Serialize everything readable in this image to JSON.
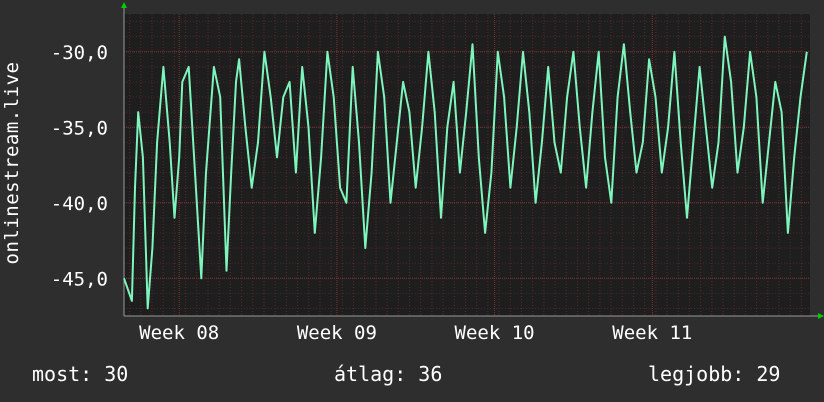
{
  "chart_data": {
    "type": "line",
    "ylabel": "onlinestream.live",
    "ylim": [
      -47.5,
      -27.5
    ],
    "y_ticks": [
      -30,
      -35,
      -40,
      -45
    ],
    "y_tick_labels": [
      "-30,0",
      "-35,0",
      "-40,0",
      "-45,0"
    ],
    "x_tick_labels": [
      "Week 08",
      "Week 09",
      "Week 10",
      "Week 11"
    ],
    "x_tick_positions": [
      1,
      2,
      3,
      4
    ],
    "xlim": [
      0.65,
      5.0
    ],
    "grid": true,
    "series": [
      {
        "color": "#7ef5bc",
        "x": [
          0.65,
          0.7,
          0.72,
          0.74,
          0.77,
          0.8,
          0.83,
          0.86,
          0.9,
          0.94,
          0.97,
          1.0,
          1.02,
          1.06,
          1.1,
          1.14,
          1.17,
          1.22,
          1.26,
          1.3,
          1.33,
          1.36,
          1.38,
          1.42,
          1.46,
          1.5,
          1.54,
          1.58,
          1.62,
          1.66,
          1.7,
          1.74,
          1.78,
          1.82,
          1.86,
          1.9,
          1.94,
          1.98,
          2.02,
          2.06,
          2.1,
          2.14,
          2.18,
          2.22,
          2.26,
          2.3,
          2.34,
          2.38,
          2.42,
          2.46,
          2.5,
          2.54,
          2.58,
          2.62,
          2.66,
          2.7,
          2.74,
          2.78,
          2.82,
          2.86,
          2.9,
          2.94,
          2.98,
          3.02,
          3.06,
          3.1,
          3.14,
          3.18,
          3.22,
          3.26,
          3.3,
          3.34,
          3.38,
          3.42,
          3.46,
          3.5,
          3.54,
          3.58,
          3.62,
          3.66,
          3.7,
          3.74,
          3.78,
          3.82,
          3.86,
          3.9,
          3.94,
          3.98,
          4.02,
          4.06,
          4.1,
          4.14,
          4.18,
          4.22,
          4.26,
          4.3,
          4.34,
          4.38,
          4.42,
          4.46,
          4.5,
          4.54,
          4.58,
          4.62,
          4.66,
          4.7,
          4.74,
          4.78,
          4.82,
          4.86,
          4.9,
          4.94,
          4.98
        ],
        "y": [
          -45,
          -46.5,
          -39,
          -34,
          -37,
          -47,
          -43,
          -36,
          -31,
          -36,
          -41,
          -37,
          -32,
          -31,
          -38,
          -45,
          -38,
          -31,
          -33,
          -44.5,
          -38,
          -32,
          -30.5,
          -35,
          -39,
          -36,
          -30,
          -33,
          -37,
          -33,
          -32,
          -38,
          -31,
          -35,
          -42,
          -37,
          -30,
          -33,
          -39,
          -40,
          -31,
          -36,
          -43,
          -38,
          -30,
          -33,
          -40,
          -36,
          -32,
          -34,
          -39,
          -35,
          -30,
          -34,
          -41,
          -35,
          -32,
          -38,
          -34,
          -29.5,
          -37,
          -42,
          -38,
          -30,
          -33,
          -39,
          -35,
          -30,
          -34,
          -40,
          -36,
          -31,
          -36,
          -38,
          -33,
          -30,
          -35,
          -39,
          -34,
          -30,
          -37,
          -40,
          -33,
          -29.5,
          -34,
          -38,
          -36,
          -30.5,
          -33,
          -38,
          -35,
          -30,
          -36,
          -41,
          -36,
          -31,
          -35,
          -39,
          -36,
          -29,
          -32,
          -38,
          -35,
          -30,
          -33,
          -40,
          -36,
          -32,
          -34,
          -42,
          -37,
          -33,
          -30
        ]
      }
    ]
  },
  "footer": {
    "now": "most: 30",
    "avg": "átlag: 36",
    "best": "legjobb: 29"
  }
}
